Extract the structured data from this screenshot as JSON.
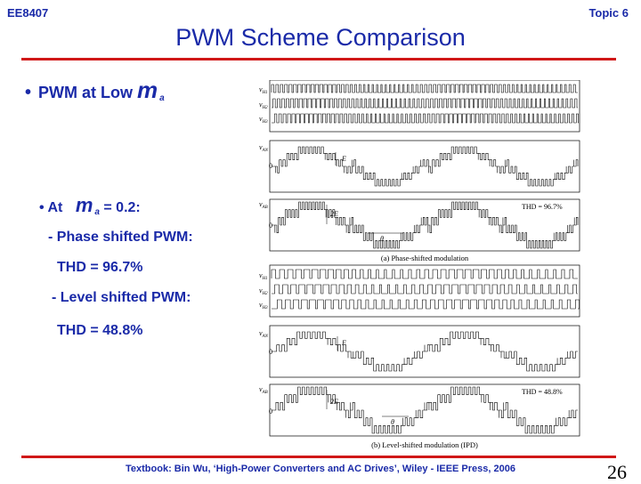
{
  "header": {
    "course": "EE8407",
    "topic": "Topic 6"
  },
  "title": "PWM Scheme Comparison",
  "bullets": {
    "b1_prefix": "PWM at Low",
    "b1_var": "m",
    "b1_sub": "a",
    "b2_prefix": "At",
    "b2_var": "m",
    "b2_sub": "a",
    "b2_suffix": "= 0.2:",
    "phase_shifted": "- Phase shifted PWM:",
    "phase_thd": "THD = 96.7%",
    "level_shifted": "- Level shifted PWM:",
    "level_thd": "THD = 48.8%"
  },
  "figure": {
    "panel_a": {
      "vH1": "v",
      "vH1_sub": "H1",
      "vH2": "v",
      "vH2_sub": "H2",
      "vH3": "v",
      "vH3_sub": "H3",
      "vAN": "v",
      "vAN_sub": "AN",
      "zero1": "0",
      "E": "E",
      "vAB": "v",
      "vAB_sub": "AB",
      "zero2": "0",
      "twoE": "2E",
      "theta": "θ",
      "thd": "THD = 96.7%",
      "caption": "(a) Phase-shifted modulation"
    },
    "panel_b": {
      "vH1": "v",
      "vH1_sub": "H1",
      "vH2": "v",
      "vH2_sub": "H2",
      "vH3": "v",
      "vH3_sub": "H3",
      "vAN": "v",
      "vAN_sub": "AN",
      "zero1": "0",
      "E": "E",
      "vAB": "v",
      "vAB_sub": "AB",
      "zero2": "0",
      "twoE": "2E",
      "theta": "θ",
      "thd": "THD = 48.8%",
      "caption": "(b) Level-shifted modulation (IPD)"
    }
  },
  "footer": {
    "citation": "Textbook: Bin Wu, ‘High-Power Converters and AC Drives’, Wiley - IEEE Press, 2006",
    "slide_number": "26"
  }
}
